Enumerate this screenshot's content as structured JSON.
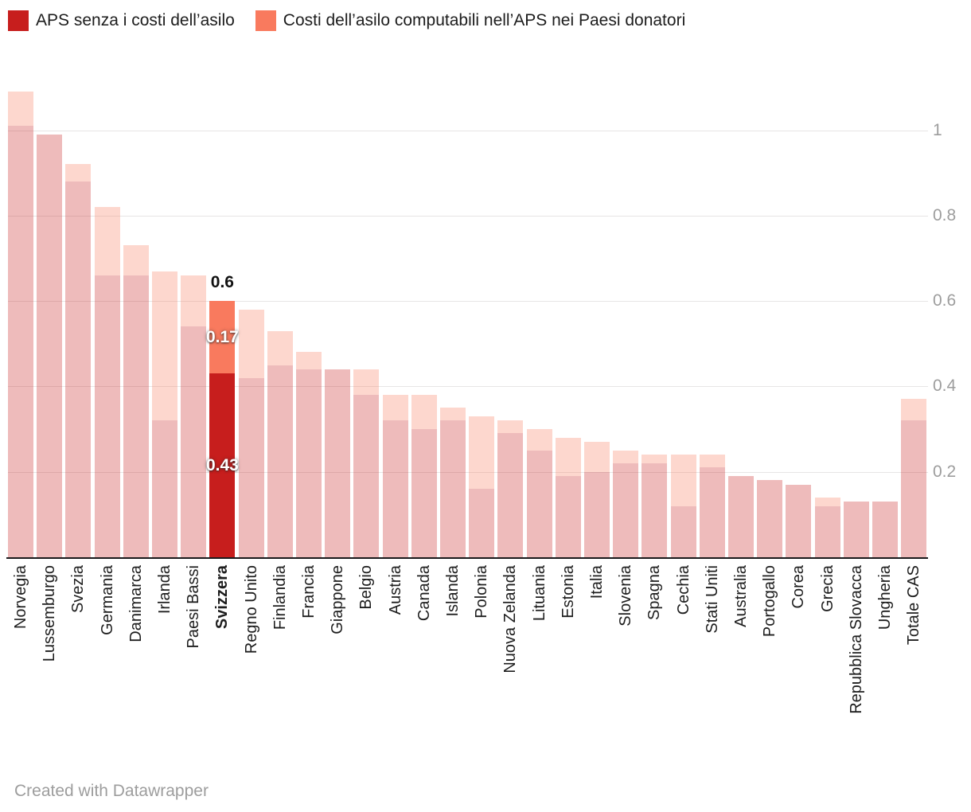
{
  "legend": {
    "items": [
      {
        "id": "aps",
        "label": "APS senza i costi dell’asilo",
        "color": "#c71e1d"
      },
      {
        "id": "asilo",
        "label": "Costi dell’asilo computabili nell’APS nei Paesi donatori",
        "color": "#f97a5e"
      }
    ]
  },
  "chart_data": {
    "type": "bar",
    "stacked": true,
    "orientation": "vertical",
    "grid": true,
    "legend_position": "top",
    "series_names": [
      "APS senza i costi dell’asilo",
      "Costi dell’asilo computabili nell’APS nei Paesi donatori"
    ],
    "y_ticks": [
      "0.2",
      "0.4",
      "0.6",
      "0.8",
      "1"
    ],
    "y_tick_values": [
      0.2,
      0.4,
      0.6,
      0.8,
      1
    ],
    "ylim": [
      0,
      1.12
    ],
    "colors": {
      "aps_highlight": "#c71e1d",
      "asilo_highlight": "#f97a5e",
      "aps_muted": "rgba(199,30,29,0.3)",
      "asilo_muted": "rgba(249,122,94,0.3)"
    },
    "bars": [
      {
        "category": "Norvegia",
        "aps": 1.01,
        "asilo": 0.08
      },
      {
        "category": "Lussemburgo",
        "aps": 0.99,
        "asilo": 0
      },
      {
        "category": "Svezia",
        "aps": 0.88,
        "asilo": 0.04
      },
      {
        "category": "Germania",
        "aps": 0.66,
        "asilo": 0.16
      },
      {
        "category": "Danimarca",
        "aps": 0.66,
        "asilo": 0.07
      },
      {
        "category": "Irlanda",
        "aps": 0.32,
        "asilo": 0.35
      },
      {
        "category": "Paesi Bassi",
        "aps": 0.54,
        "asilo": 0.12
      },
      {
        "category": "Svizzera",
        "aps": 0.43,
        "asilo": 0.17,
        "highlight": true,
        "labels": {
          "total": "0.6",
          "asilo": "0.17",
          "aps": "0.43"
        }
      },
      {
        "category": "Regno Unito",
        "aps": 0.42,
        "asilo": 0.16
      },
      {
        "category": "Finlandia",
        "aps": 0.45,
        "asilo": 0.08
      },
      {
        "category": "Francia",
        "aps": 0.44,
        "asilo": 0.04
      },
      {
        "category": "Giappone",
        "aps": 0.44,
        "asilo": 0
      },
      {
        "category": "Belgio",
        "aps": 0.38,
        "asilo": 0.06
      },
      {
        "category": "Austria",
        "aps": 0.32,
        "asilo": 0.06
      },
      {
        "category": "Canada",
        "aps": 0.3,
        "asilo": 0.08
      },
      {
        "category": "Islanda",
        "aps": 0.32,
        "asilo": 0.03
      },
      {
        "category": "Polonia",
        "aps": 0.16,
        "asilo": 0.17
      },
      {
        "category": "Nuova Zelanda",
        "aps": 0.29,
        "asilo": 0.03
      },
      {
        "category": "Lituania",
        "aps": 0.25,
        "asilo": 0.05
      },
      {
        "category": "Estonia",
        "aps": 0.19,
        "asilo": 0.09
      },
      {
        "category": "Italia",
        "aps": 0.2,
        "asilo": 0.07
      },
      {
        "category": "Slovenia",
        "aps": 0.22,
        "asilo": 0.03
      },
      {
        "category": "Spagna",
        "aps": 0.22,
        "asilo": 0.02
      },
      {
        "category": "Cechia",
        "aps": 0.12,
        "asilo": 0.12
      },
      {
        "category": "Stati Uniti",
        "aps": 0.21,
        "asilo": 0.03
      },
      {
        "category": "Australia",
        "aps": 0.19,
        "asilo": 0
      },
      {
        "category": "Portogallo",
        "aps": 0.18,
        "asilo": 0
      },
      {
        "category": "Corea",
        "aps": 0.17,
        "asilo": 0
      },
      {
        "category": "Grecia",
        "aps": 0.12,
        "asilo": 0.02
      },
      {
        "category": "Repubblica Slovacca",
        "aps": 0.13,
        "asilo": 0
      },
      {
        "category": "Ungheria",
        "aps": 0.13,
        "asilo": 0
      },
      {
        "category": "Totale CAS",
        "aps": 0.32,
        "asilo": 0.05
      }
    ]
  },
  "footer": {
    "credit": "Created with Datawrapper"
  }
}
